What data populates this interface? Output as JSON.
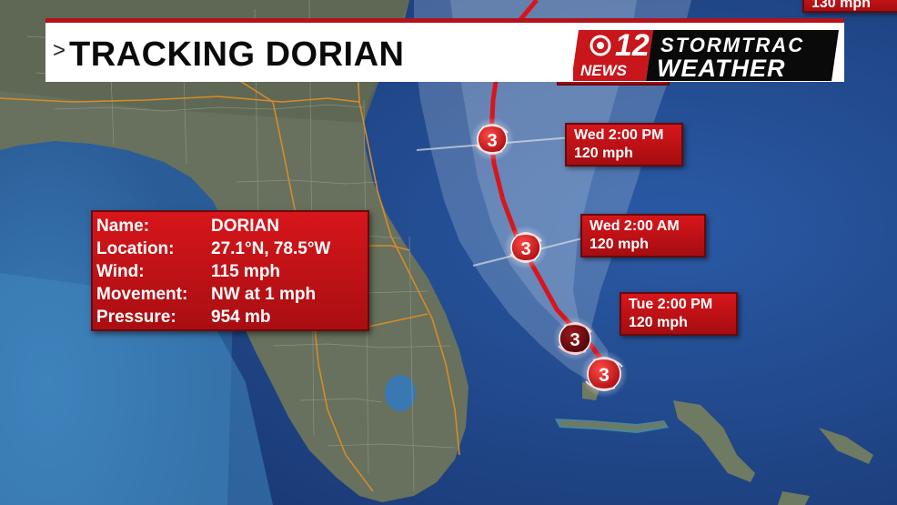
{
  "header": {
    "chevron": ">",
    "title": "TRACKING DORIAN"
  },
  "logo": {
    "number": "12",
    "network": "CBS",
    "news": "NEWS",
    "line1": "STORMTRAC",
    "line2": "WEATHER"
  },
  "info": {
    "name_label": "Name:",
    "name_value": "DORIAN",
    "location_label": "Location:",
    "location_value": "27.1°N, 78.5°W",
    "wind_label": "Wind:",
    "wind_value": "115 mph",
    "movement_label": "Movement:",
    "movement_value": "NW at 1 mph",
    "pressure_label": "Pressure:",
    "pressure_value": "954 mb"
  },
  "forecast_points": [
    {
      "time": "Wed 2:00 PM",
      "wind": "120 mph"
    },
    {
      "time": "Wed 2:00 AM",
      "wind": "120 mph"
    },
    {
      "time": "Tue 2:00 PM",
      "wind": "120 mph"
    }
  ],
  "top_right_partial": {
    "wind": "130 mph"
  },
  "storm_markers": [
    {
      "category": "3",
      "state": "forecast"
    },
    {
      "category": "3",
      "state": "forecast"
    },
    {
      "category": "3",
      "state": "forecast"
    },
    {
      "category": "3",
      "state": "current"
    }
  ],
  "colors": {
    "ocean": "#1d3f82",
    "ocean_shelf": "#3a7fb6",
    "land": "#66705b",
    "cone": "#d9e6f2",
    "track": "#d9151c",
    "label_red": "#c21318",
    "title_red": "#b3141b"
  }
}
